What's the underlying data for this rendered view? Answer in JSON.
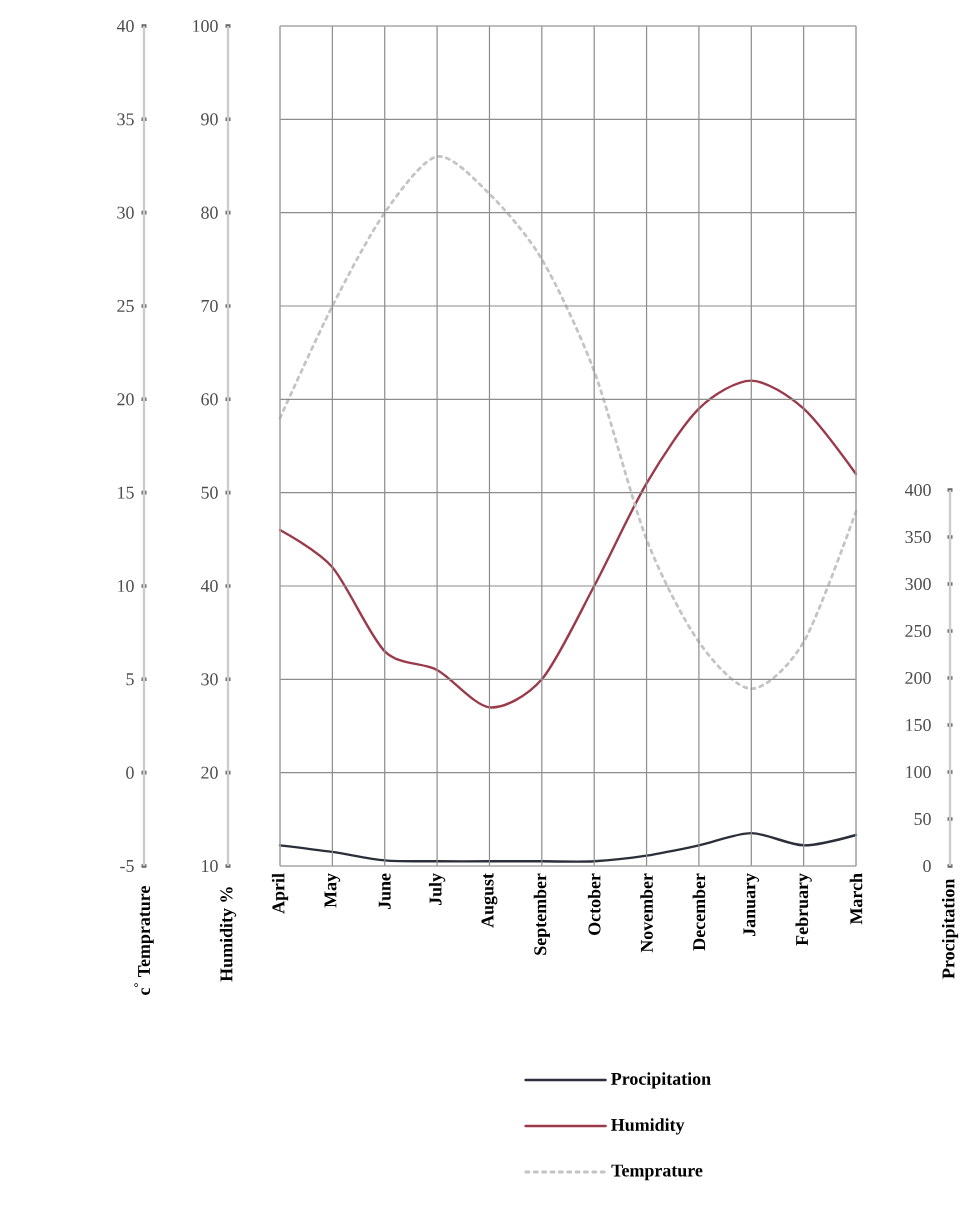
{
  "chart_data": {
    "type": "line",
    "categories": [
      "April",
      "May",
      "June",
      "July",
      "August",
      "September",
      "October",
      "November",
      "December",
      "January",
      "February",
      "March"
    ],
    "ylabel": "Humidity %",
    "y2label": "Procipitation",
    "y3label": "c$^{°}$ Temprature",
    "ylim": [
      10,
      100
    ],
    "yticks": [
      10,
      20,
      30,
      40,
      50,
      60,
      70,
      80,
      90,
      100
    ],
    "y2lim": [
      0,
      400
    ],
    "y2ticks": [
      0,
      50,
      100,
      150,
      200,
      250,
      300,
      350,
      400
    ],
    "y3lim": [
      -5,
      40
    ],
    "y3ticks": [
      -5,
      0,
      5,
      10,
      15,
      20,
      25,
      30,
      35,
      40
    ],
    "grid": true,
    "legend": "bottom",
    "series": [
      {
        "name": "Procipitation",
        "color": "#2b2f3a",
        "axis": "y2",
        "line_style": "solid",
        "values": [
          22,
          15,
          6,
          5,
          5,
          5,
          5,
          11,
          22,
          35,
          22,
          33
        ]
      },
      {
        "name": "Humidity",
        "color": "#9b3a4a",
        "axis": "y",
        "line_style": "solid",
        "values": [
          46,
          42,
          33,
          31,
          27,
          30,
          40,
          51,
          59,
          62,
          59,
          52
        ]
      },
      {
        "name": "Temprature",
        "color": "#c4c4c4",
        "axis": "y3",
        "line_style": "dotted",
        "values": [
          19,
          25,
          30,
          33,
          31,
          27.5,
          21.5,
          12.5,
          7,
          4.5,
          7,
          14
        ]
      }
    ]
  }
}
